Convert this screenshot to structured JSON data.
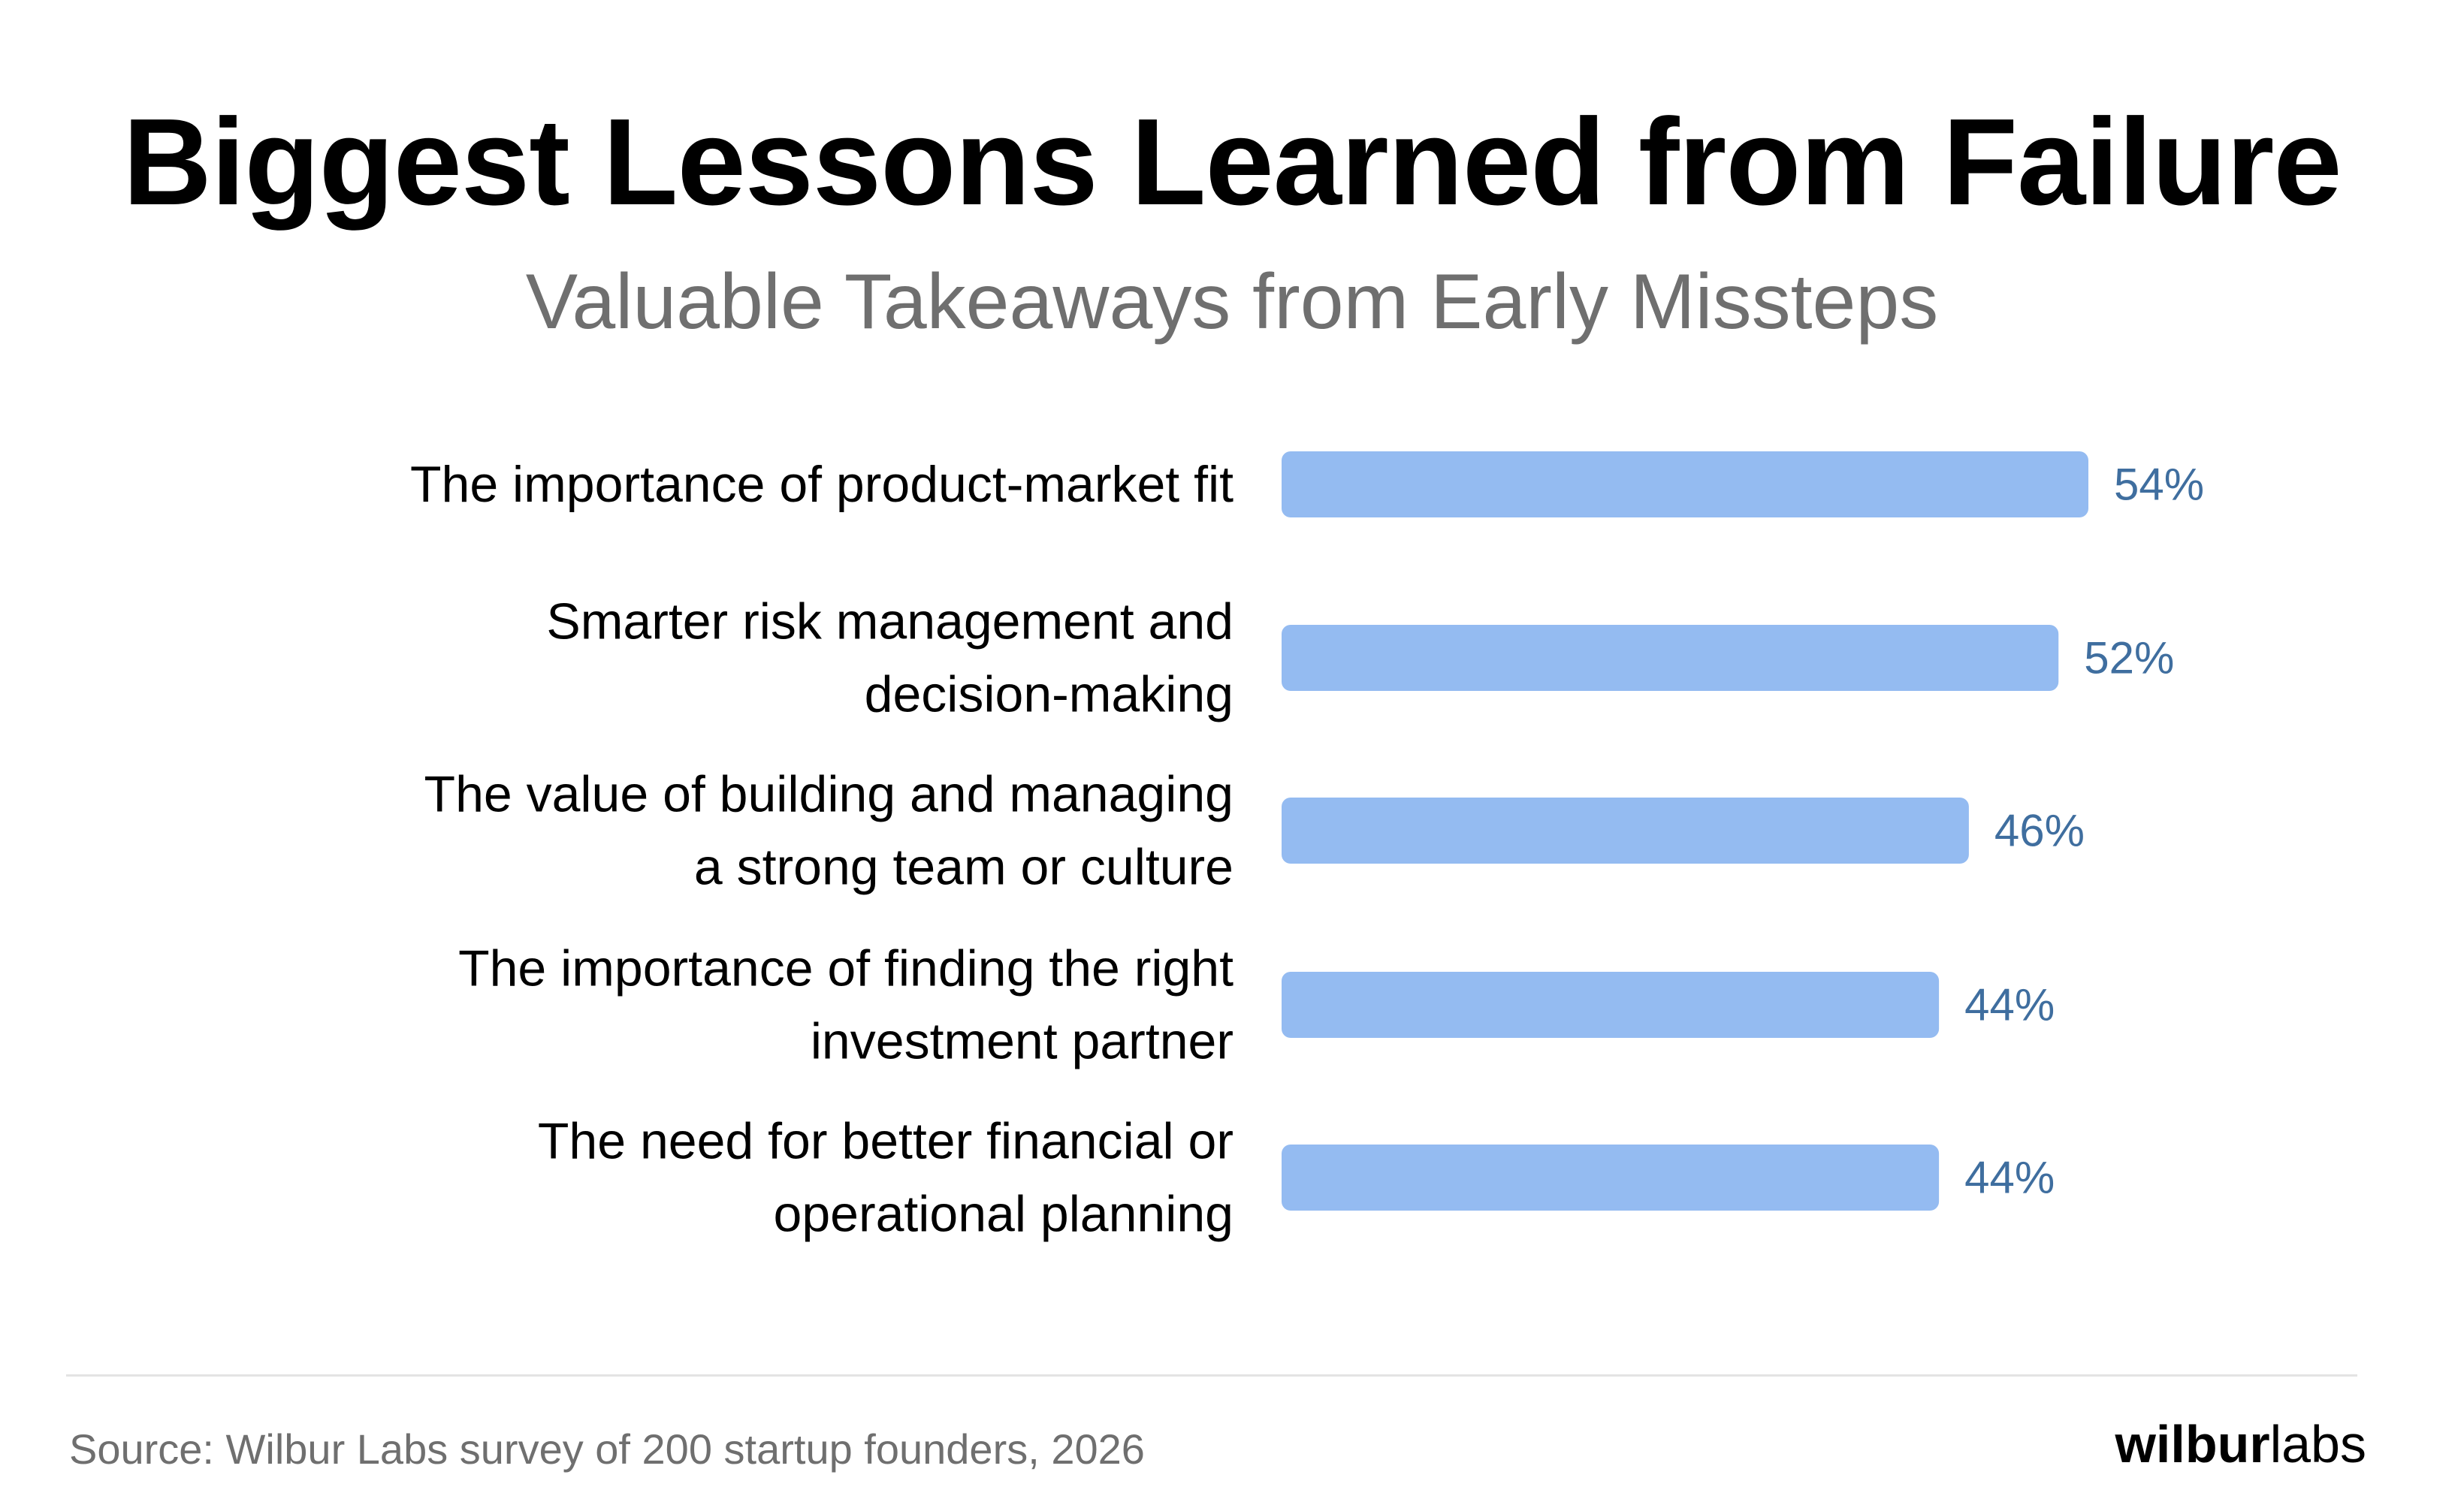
{
  "header": {
    "title": "Biggest Lessons Learned from Failure",
    "subtitle": "Valuable Takeaways from Early Missteps"
  },
  "footer": {
    "source": "Source: Wilbur Labs survey of 200 startup founders, 2026",
    "logo_bold": "wilbur",
    "logo_light": "labs"
  },
  "colors": {
    "bar": "#94bbf1",
    "value_label": "#3f6e9f",
    "category_label": "#000000"
  },
  "chart_data": {
    "type": "bar",
    "orientation": "horizontal",
    "title": "Biggest Lessons Learned from Failure",
    "subtitle": "Valuable Takeaways from Early Missteps",
    "categories": [
      [
        "The importance of product-market fit"
      ],
      [
        "Smarter risk management and",
        "decision-making"
      ],
      [
        "The value of building and managing",
        "a strong team or culture"
      ],
      [
        "The importance of finding the right",
        "investment partner"
      ],
      [
        "The need for better financial or",
        "operational planning"
      ]
    ],
    "values": [
      54,
      52,
      46,
      44,
      44
    ],
    "value_labels": [
      "54%",
      "52%",
      "46%",
      "44%",
      "44%"
    ],
    "unit": "%",
    "xlim": [
      0,
      54
    ],
    "grid": false,
    "legend": "none"
  }
}
